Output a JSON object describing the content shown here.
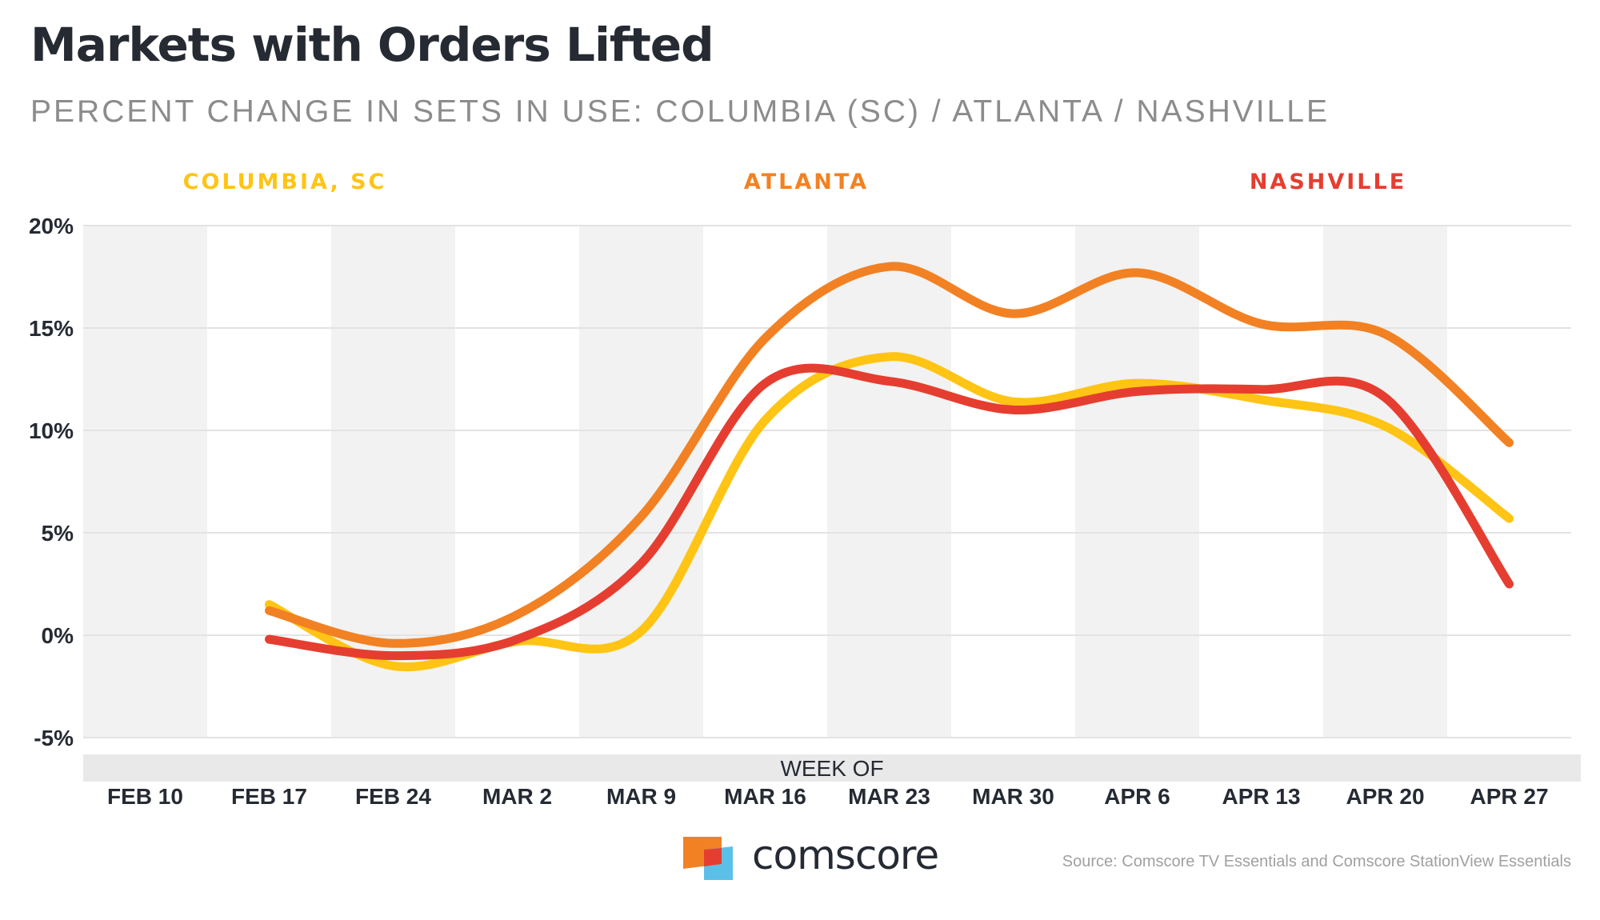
{
  "header": {
    "title": "Markets with Orders Lifted",
    "subtitle": "PERCENT CHANGE IN SETS IN USE: COLUMBIA (SC) / ATLANTA / NASHVILLE"
  },
  "footer": {
    "brand": "comscore",
    "source": "Source: Comscore TV Essentials and Comscore StationView Essentials"
  },
  "colors": {
    "columbia": "#ffc414",
    "atlanta": "#f28123",
    "nashville": "#e53e30",
    "band": "#f1f2f1",
    "grid": "#e3e3e3",
    "axis_bar": "#e8e9e8",
    "text_dark": "#252a33"
  },
  "chart_data": {
    "type": "line",
    "xlabel": "WEEK OF",
    "ylabel": "",
    "categories": [
      "FEB 10",
      "FEB 17",
      "FEB 24",
      "MAR 2",
      "MAR 9",
      "MAR 16",
      "MAR 23",
      "MAR 30",
      "APR 6",
      "APR 13",
      "APR 20",
      "APR 27"
    ],
    "ylim": [
      -5,
      20
    ],
    "yticks": [
      -5,
      0,
      5,
      10,
      15,
      20
    ],
    "ytick_labels": [
      "-5%",
      "0%",
      "5%",
      "10%",
      "15%",
      "20%"
    ],
    "grid": true,
    "legend_placement": "top",
    "series": [
      {
        "name": "COLUMBIA, SC",
        "color": "#ffc414",
        "values": [
          null,
          1.5,
          -1.5,
          -0.3,
          0.2,
          10.5,
          13.6,
          11.4,
          12.3,
          11.5,
          10.2,
          5.7
        ]
      },
      {
        "name": "ATLANTA",
        "color": "#f28123",
        "values": [
          null,
          1.2,
          -0.4,
          1.0,
          5.8,
          14.5,
          18.0,
          15.7,
          17.7,
          15.2,
          14.7,
          9.4
        ]
      },
      {
        "name": "NASHVILLE",
        "color": "#e53e30",
        "values": [
          null,
          -0.2,
          -1.0,
          -0.2,
          3.5,
          12.3,
          12.4,
          11.0,
          11.9,
          12.0,
          11.6,
          2.5
        ]
      }
    ]
  }
}
